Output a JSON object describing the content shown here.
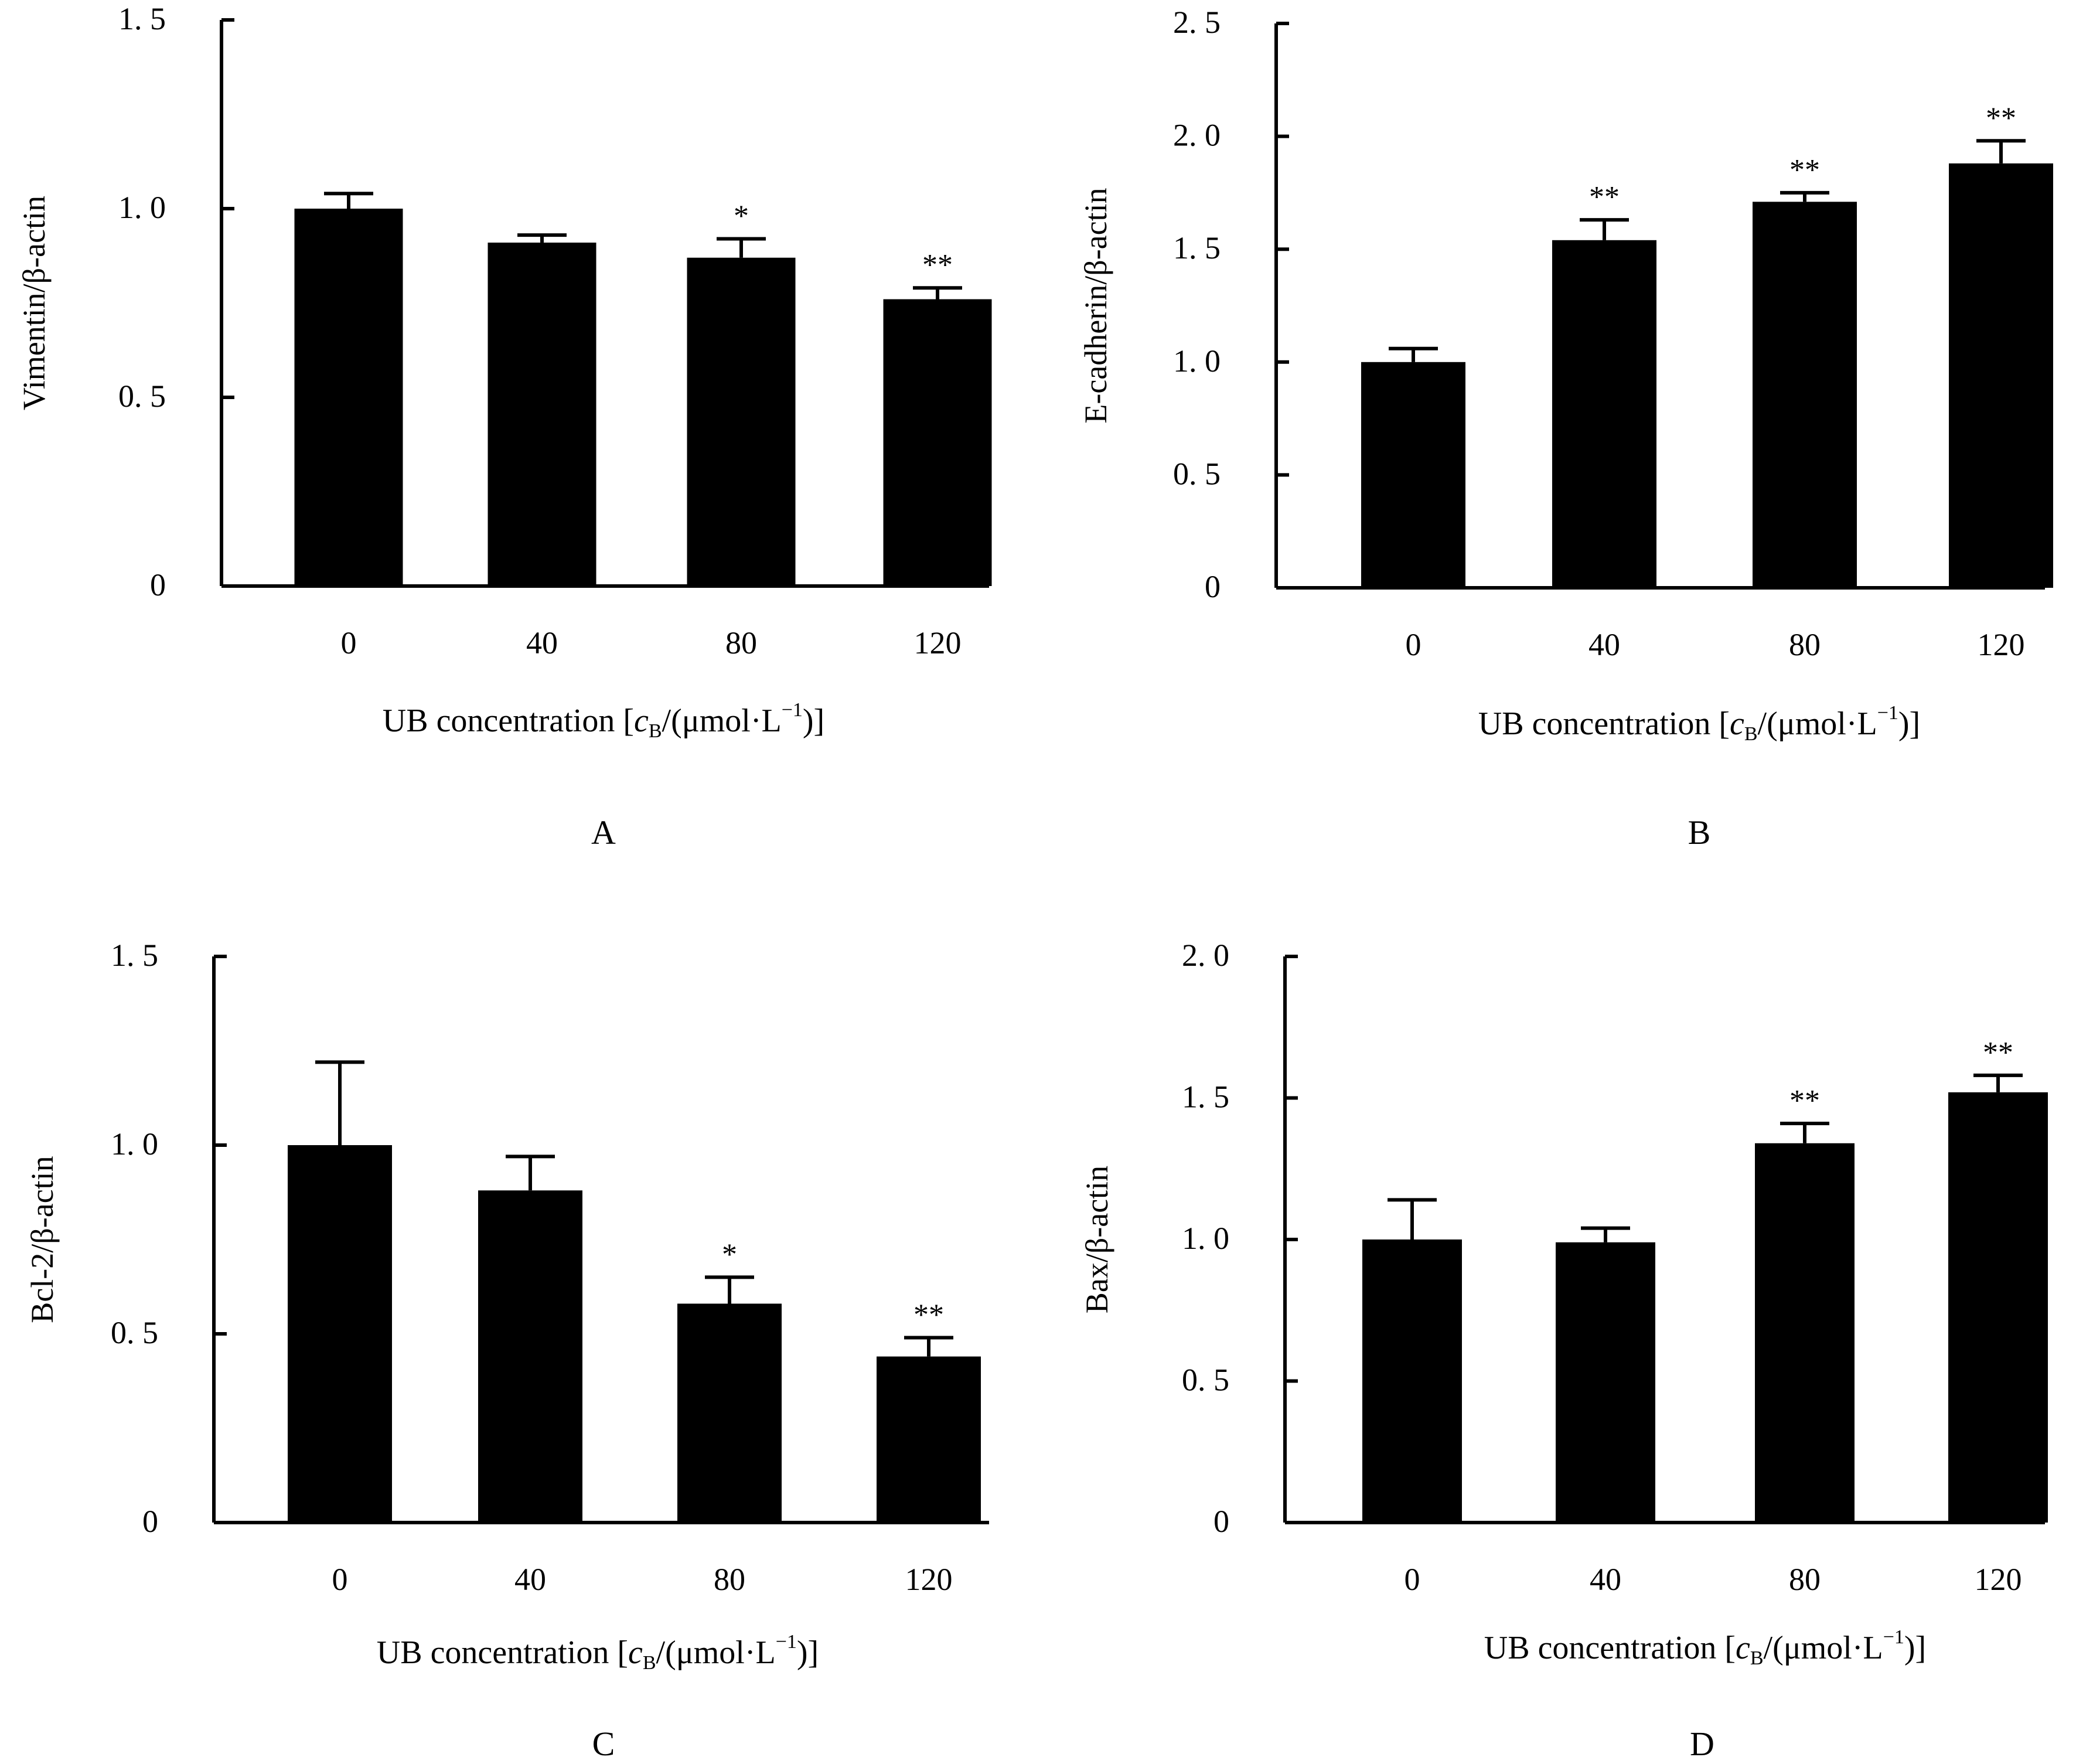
{
  "figure": {
    "x_title": "UB concentration [cB/(μmol·L⁻¹)]",
    "x_title_parts": {
      "prefix": "UB concentration [",
      "var": "c",
      "sub": "B",
      "middle": "/(μmol·L",
      "sup": "−1",
      "suffix": ")]"
    }
  },
  "chart_data": [
    {
      "type": "bar",
      "panel": "A",
      "ylabel": "Vimentin/β-actin",
      "categories": [
        "0",
        "40",
        "80",
        "120"
      ],
      "values": [
        1.0,
        0.91,
        0.87,
        0.76
      ],
      "errors": [
        0.04,
        0.02,
        0.05,
        0.03
      ],
      "significance": [
        "",
        "",
        "*",
        "**"
      ],
      "ylim": [
        0,
        1.5
      ],
      "yticks": [
        0,
        0.5,
        1.0,
        1.5
      ],
      "ytick_labels": [
        "0",
        "0. 5",
        "1. 0",
        "1. 5"
      ]
    },
    {
      "type": "bar",
      "panel": "B",
      "ylabel": "E-cadherin/β-actin",
      "categories": [
        "0",
        "40",
        "80",
        "120"
      ],
      "values": [
        1.0,
        1.54,
        1.71,
        1.88
      ],
      "errors": [
        0.06,
        0.09,
        0.04,
        0.1
      ],
      "significance": [
        "",
        "**",
        "**",
        "**"
      ],
      "ylim": [
        0,
        2.5
      ],
      "yticks": [
        0,
        0.5,
        1.0,
        1.5,
        2.0,
        2.5
      ],
      "ytick_labels": [
        "0",
        "0. 5",
        "1. 0",
        "1. 5",
        "2. 0",
        "2. 5"
      ]
    },
    {
      "type": "bar",
      "panel": "C",
      "ylabel": "Bcl-2/β-actin",
      "categories": [
        "0",
        "40",
        "80",
        "120"
      ],
      "values": [
        1.0,
        0.88,
        0.58,
        0.44
      ],
      "errors": [
        0.22,
        0.09,
        0.07,
        0.05
      ],
      "significance": [
        "",
        "",
        "*",
        "**"
      ],
      "ylim": [
        0,
        1.5
      ],
      "yticks": [
        0,
        0.5,
        1.0,
        1.5
      ],
      "ytick_labels": [
        "0",
        "0. 5",
        "1. 0",
        "1. 5"
      ]
    },
    {
      "type": "bar",
      "panel": "D",
      "ylabel": "Bax/β-actin",
      "categories": [
        "0",
        "40",
        "80",
        "120"
      ],
      "values": [
        1.0,
        0.99,
        1.34,
        1.52
      ],
      "errors": [
        0.14,
        0.05,
        0.07,
        0.06
      ],
      "significance": [
        "",
        "",
        "**",
        "**"
      ],
      "ylim": [
        0,
        2.0
      ],
      "yticks": [
        0,
        0.5,
        1.0,
        1.5,
        2.0
      ],
      "ytick_labels": [
        "0",
        "0. 5",
        "1. 0",
        "1. 5",
        "2. 0"
      ]
    }
  ]
}
